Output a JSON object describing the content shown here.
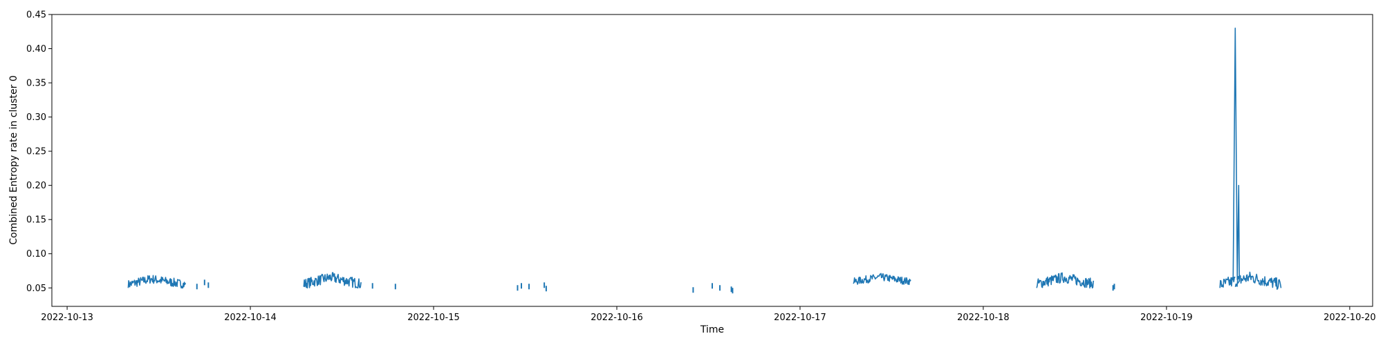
{
  "chart_data": {
    "type": "line",
    "title": "",
    "xlabel": "Time",
    "ylabel": "Combined Entropy rate in cluster 0",
    "x_ticks": [
      "2022-10-13",
      "2022-10-14",
      "2022-10-15",
      "2022-10-16",
      "2022-10-17",
      "2022-10-18",
      "2022-10-19",
      "2022-10-20"
    ],
    "y_ticks": [
      "0.05",
      "0.10",
      "0.15",
      "0.20",
      "0.25",
      "0.30",
      "0.35",
      "0.40",
      "0.45"
    ],
    "xlim": [
      "2022-10-12T22:00",
      "2022-10-20T03:00"
    ],
    "ylim": [
      0.023,
      0.45
    ],
    "grid": false,
    "color": "#1f77b4",
    "series": [
      {
        "segments": [
          {
            "start": "2022-10-13T08:00",
            "end": "2022-10-13T15:30",
            "min": 0.05,
            "max": 0.074,
            "peak_at": "2022-10-13T11:00"
          },
          {
            "start": "2022-10-14T07:00",
            "end": "2022-10-14T14:30",
            "min": 0.05,
            "max": 0.078,
            "peak_at": "2022-10-14T10:30"
          },
          {
            "start": "2022-10-17T07:00",
            "end": "2022-10-17T14:30",
            "min": 0.055,
            "max": 0.075,
            "peak_at": "2022-10-17T10:30"
          },
          {
            "start": "2022-10-18T07:00",
            "end": "2022-10-18T14:30",
            "min": 0.05,
            "max": 0.078,
            "peak_at": "2022-10-18T10:30"
          },
          {
            "start": "2022-10-19T07:00",
            "end": "2022-10-19T15:00",
            "min": 0.048,
            "max": 0.08,
            "peak_at": "2022-10-19T11:00"
          }
        ],
        "spike": {
          "x": "2022-10-19T09:00",
          "y": 0.43
        },
        "dots": [
          {
            "x": "2022-10-13T17:00",
            "y": 0.052
          },
          {
            "x": "2022-10-13T18:00",
            "y": 0.058
          },
          {
            "x": "2022-10-13T18:30",
            "y": 0.054
          },
          {
            "x": "2022-10-14T16:00",
            "y": 0.053
          },
          {
            "x": "2022-10-14T19:00",
            "y": 0.052
          },
          {
            "x": "2022-10-15T11:00",
            "y": 0.05
          },
          {
            "x": "2022-10-15T11:30",
            "y": 0.053
          },
          {
            "x": "2022-10-15T12:30",
            "y": 0.052
          },
          {
            "x": "2022-10-15T14:30",
            "y": 0.054
          },
          {
            "x": "2022-10-15T14:45",
            "y": 0.049
          },
          {
            "x": "2022-10-16T10:00",
            "y": 0.047
          },
          {
            "x": "2022-10-16T12:30",
            "y": 0.053
          },
          {
            "x": "2022-10-16T13:30",
            "y": 0.05
          },
          {
            "x": "2022-10-16T15:00",
            "y": 0.048
          },
          {
            "x": "2022-10-16T15:10",
            "y": 0.046
          },
          {
            "x": "2022-10-18T17:00",
            "y": 0.05
          },
          {
            "x": "2022-10-18T17:10",
            "y": 0.052
          }
        ]
      }
    ]
  }
}
